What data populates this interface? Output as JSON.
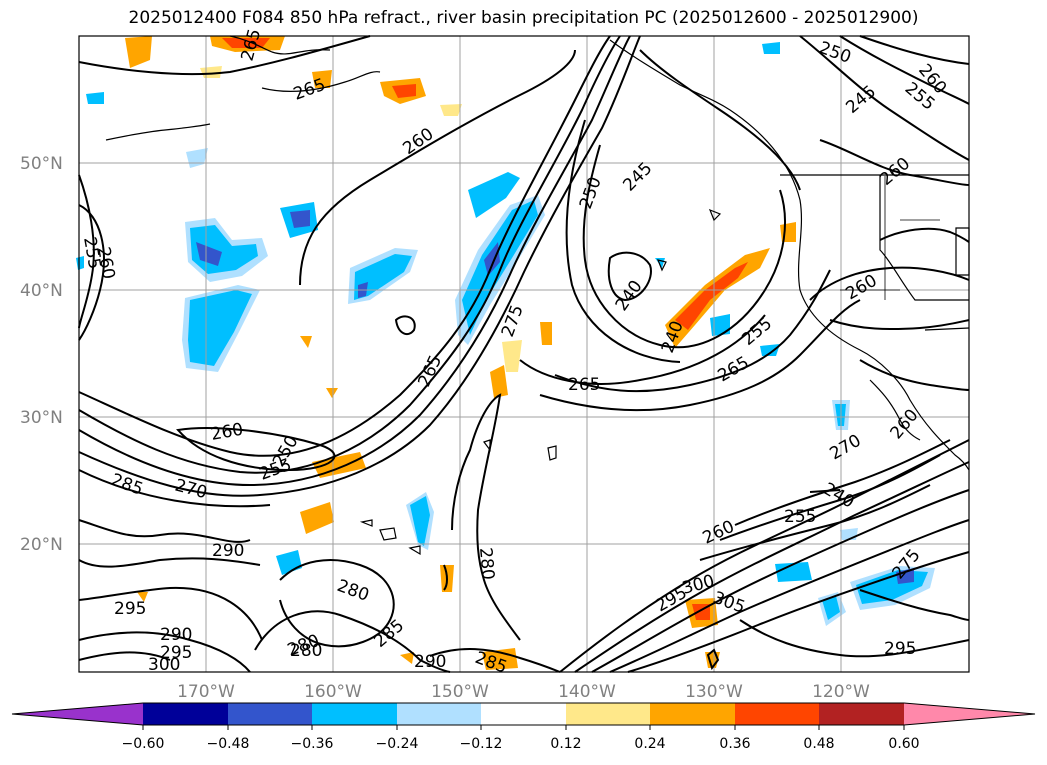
{
  "title": "2025012400 F084 850 hPa refract., river basin precipitation PC (2025012600 - 2025012900)",
  "lat_labels": [
    "50°N",
    "40°N",
    "30°N",
    "20°N"
  ],
  "lon_labels": [
    "170°W",
    "160°W",
    "150°W",
    "140°W",
    "130°W",
    "120°W"
  ],
  "contour_labels": [
    "260",
    "265",
    "255",
    "260",
    "285",
    "270",
    "260",
    "255",
    "250",
    "290",
    "295",
    "290",
    "295",
    "300",
    "280",
    "280",
    "285",
    "290",
    "285",
    "265",
    "275",
    "250",
    "245",
    "240",
    "240",
    "265",
    "280",
    "300",
    "305",
    "295",
    "255",
    "265",
    "260",
    "270",
    "260",
    "255",
    "240",
    "275",
    "295",
    "250",
    "260",
    "255",
    "245",
    "260",
    "260",
    "280",
    "265"
  ],
  "colorbar": {
    "ticks": [
      "−0.60",
      "−0.48",
      "−0.36",
      "−0.24",
      "−0.12",
      "0.12",
      "0.24",
      "0.36",
      "0.48",
      "0.60"
    ],
    "colors": [
      "#9932cc",
      "#000099",
      "#3355cc",
      "#00bfff",
      "#b0e0ff",
      "#ffffff",
      "#ffe88a",
      "#ffa500",
      "#ff4500",
      "#b22222",
      "#ff88aa"
    ],
    "extend": "both"
  },
  "projection": "cylindrical",
  "extent": {
    "lon": [
      -180,
      -110
    ],
    "lat": [
      10,
      60
    ]
  },
  "grid": true
}
